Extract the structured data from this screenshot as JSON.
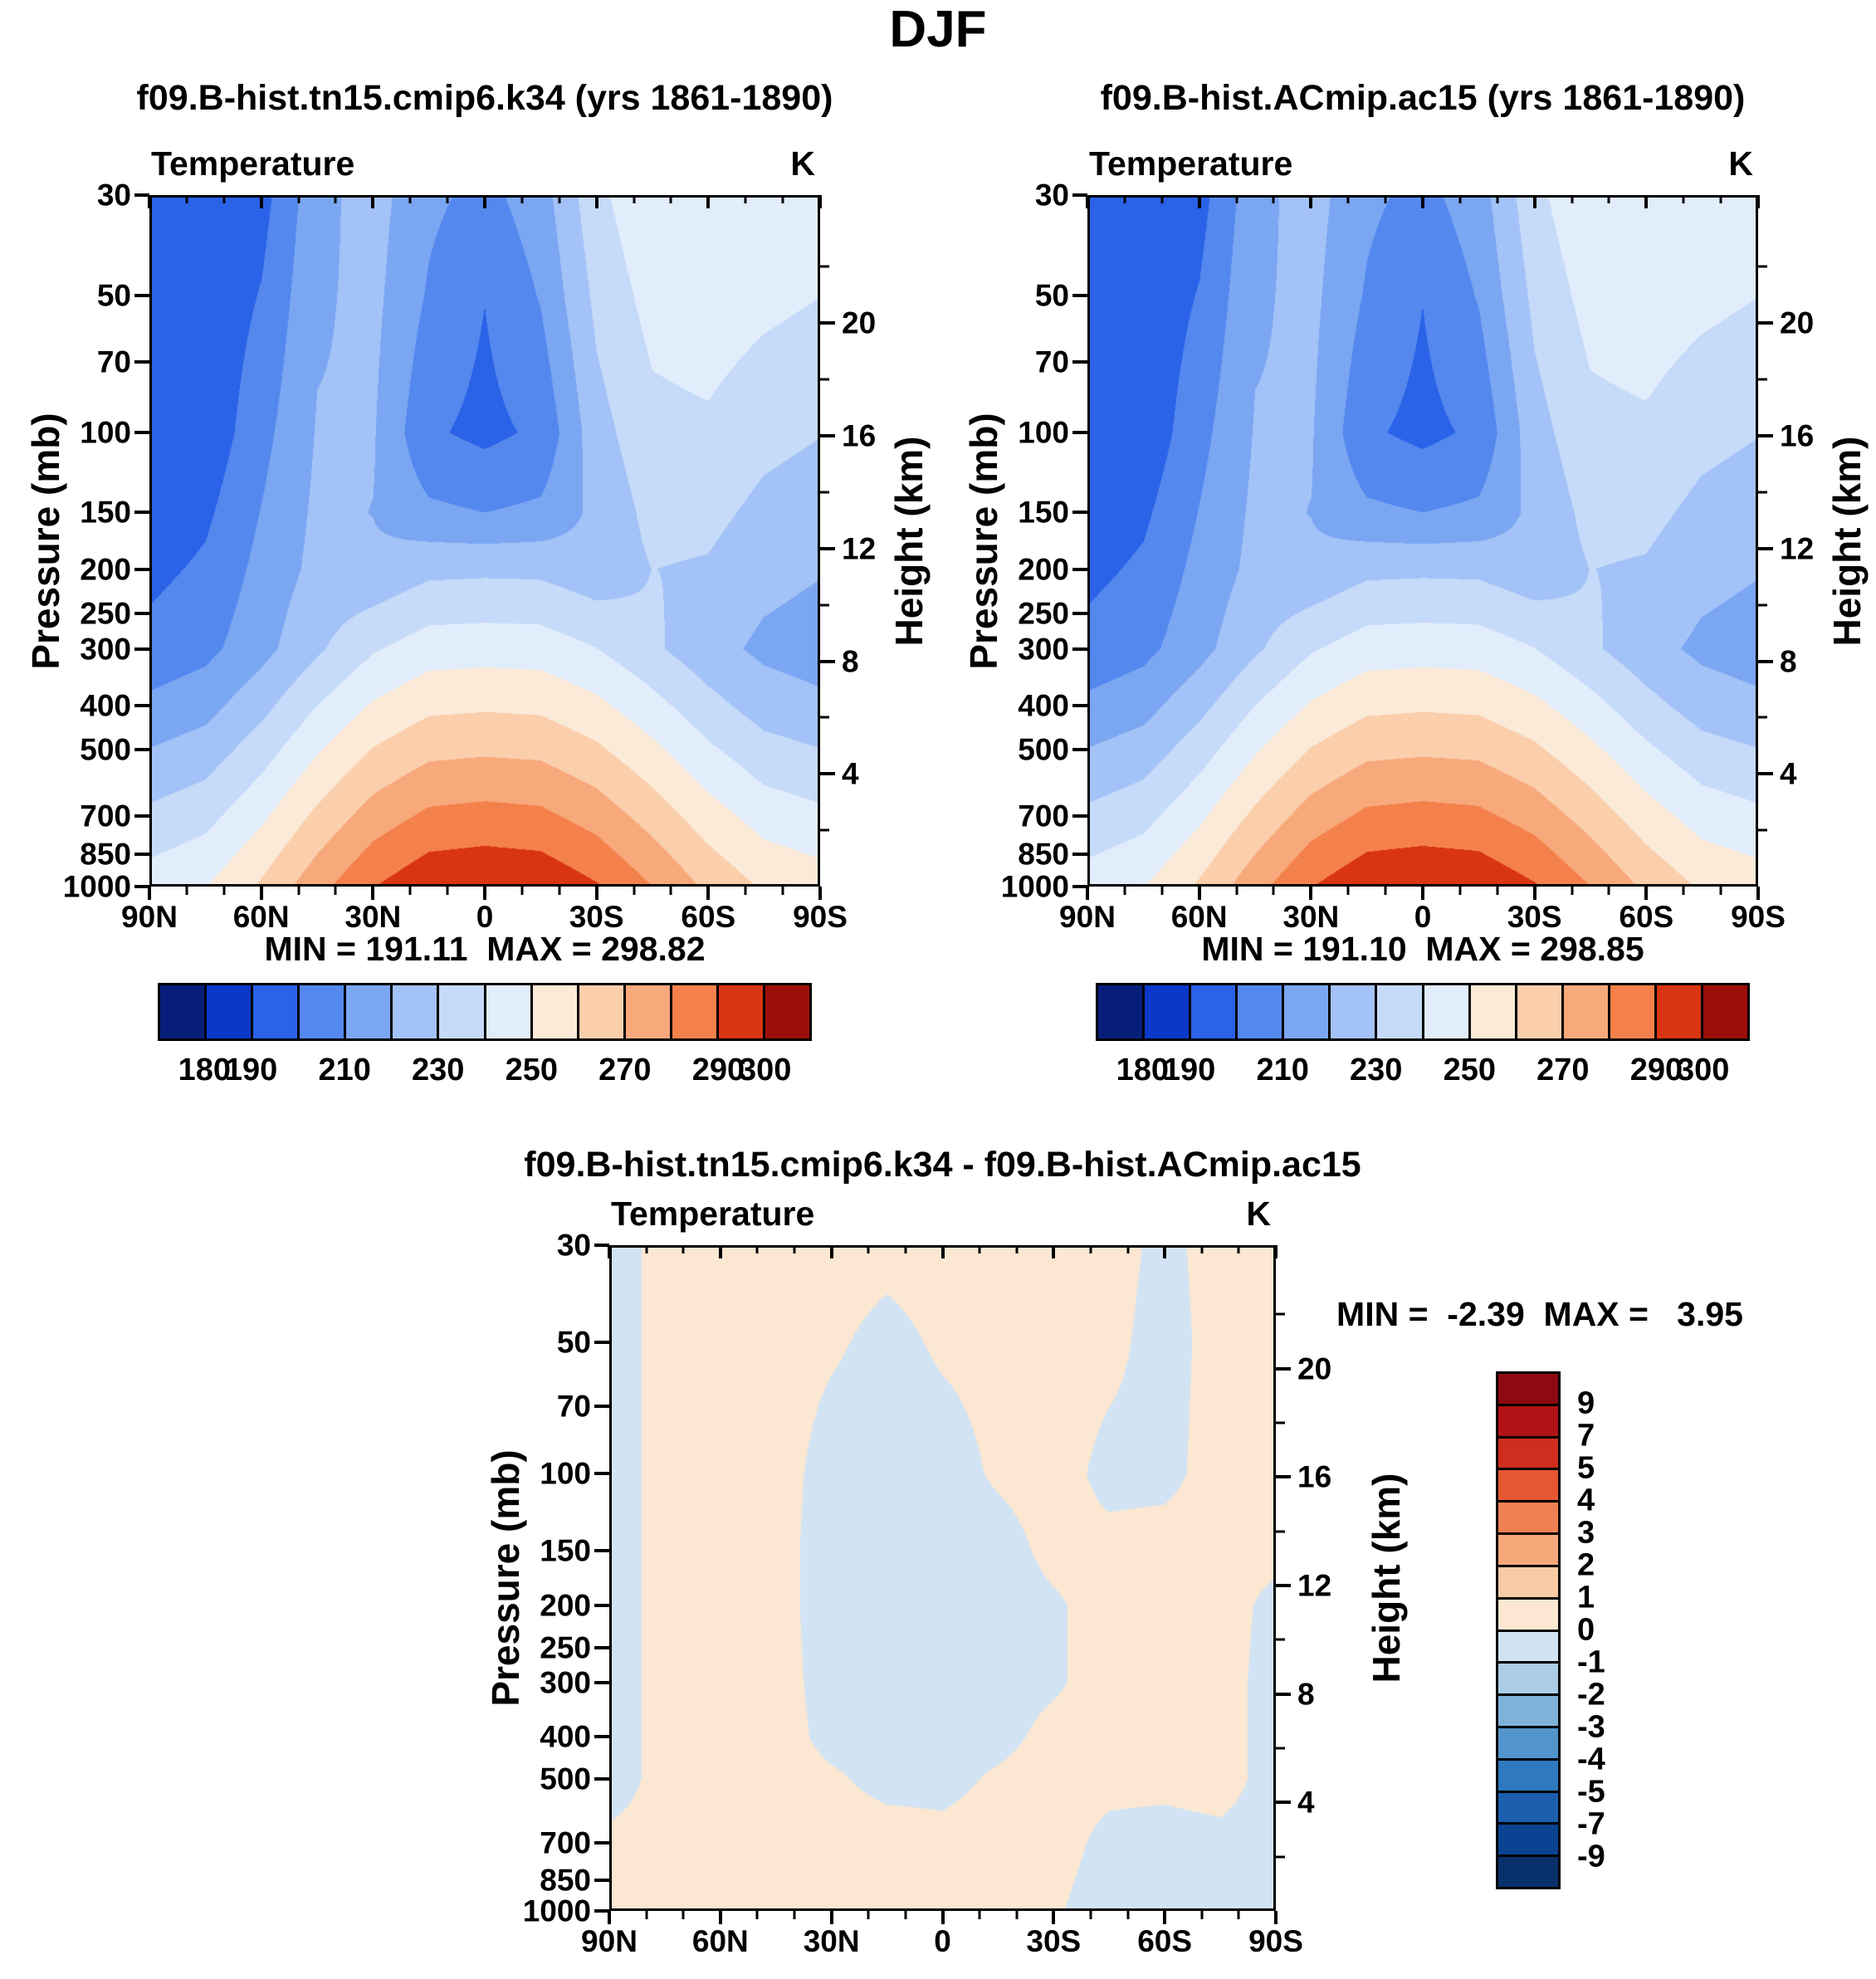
{
  "title": "DJF",
  "labels": {
    "variable": "Temperature",
    "units": "K",
    "pressure_axis": "Pressure (mb)",
    "height_axis": "Height (km)"
  },
  "chart_data": {
    "type": "heatmap",
    "description": "Zonal-mean DJF temperature cross sections (latitude vs log-pressure), two model cases and their difference",
    "x_axis": {
      "ticks": [
        "90N",
        "60N",
        "30N",
        "0",
        "30S",
        "60S",
        "90S"
      ],
      "minor_step_deg": 10
    },
    "pressure_axis": {
      "scale": "log",
      "ticks_mb": [
        30,
        50,
        70,
        100,
        150,
        200,
        250,
        300,
        400,
        500,
        700,
        850,
        1000
      ]
    },
    "height_axis": {
      "ticks_km": [
        20,
        16,
        12,
        8,
        4
      ],
      "minor_ticks_km": [
        22,
        18,
        14,
        10,
        6,
        2
      ],
      "scale_height_km": 7
    },
    "grid": {
      "lats_deg": [
        90,
        75,
        60,
        45,
        30,
        15,
        0,
        -15,
        -30,
        -45,
        -60,
        -75,
        -90
      ],
      "pressures_mb": [
        30,
        50,
        100,
        150,
        200,
        300,
        400,
        500,
        700,
        1000
      ]
    },
    "temperature": {
      "levels_k": [
        180,
        190,
        200,
        210,
        220,
        230,
        240,
        250,
        260,
        270,
        280,
        290,
        300
      ],
      "palette": [
        "#071f7a",
        "#0c38c9",
        "#2a62e8",
        "#5488ee",
        "#7ba6f2",
        "#a3c2f7",
        "#c6daf9",
        "#e2edfb",
        "#fcead9",
        "#fbceac",
        "#f8a97c",
        "#f4814b",
        "#d93512",
        "#9c0f08"
      ],
      "colorbar_labels": [
        180,
        190,
        210,
        230,
        250,
        270,
        290,
        300
      ],
      "values": [
        [
          192.0,
          192.0,
          192.0,
          193.1,
          197.3,
          203.3,
          212.3,
          220.3,
          232.3,
          245.0
        ],
        [
          192.0,
          192.0,
          192.7,
          198.1,
          201.8,
          207.2,
          216.4,
          224.5,
          236.7,
          249.6
        ],
        [
          196.1,
          200.7,
          206.8,
          210.4,
          213.0,
          216.6,
          226.9,
          235.3,
          248.0,
          261.5
        ],
        [
          216.9,
          218.5,
          220.7,
          222.0,
          222.9,
          228.4,
          240.0,
          248.9,
          262.3,
          276.5
        ],
        [
          224.1,
          222.7,
          220.9,
          219.8,
          222.0,
          239.0,
          251.1,
          260.5,
          274.6,
          289.6
        ],
        [
          212.3,
          208.8,
          201.5,
          212.0,
          227.5,
          245.2,
          257.7,
          267.4,
          282.0,
          297.6
        ],
        [
          207.0,
          200.2,
          197.4,
          210.0,
          228.0,
          245.9,
          258.6,
          268.4,
          283.3,
          299.0
        ],
        [
          215.4,
          210.7,
          201.8,
          212.0,
          227.7,
          245.4,
          257.9,
          267.6,
          282.2,
          297.8
        ],
        [
          237.2,
          232.5,
          226.2,
          222.5,
          223.3,
          240.3,
          252.4,
          261.8,
          275.9,
          290.9
        ],
        [
          248.7,
          243.7,
          236.9,
          233.0,
          230.1,
          231.9,
          243.5,
          252.4,
          265.8,
          280.0
        ],
        [
          248.9,
          246.0,
          238.2,
          232.8,
          229.0,
          223.6,
          233.4,
          241.8,
          254.5,
          268.0
        ],
        [
          249.9,
          242.7,
          233.0,
          227.4,
          223.3,
          217.8,
          225.4,
          233.5,
          245.7,
          258.6
        ],
        [
          247.3,
          240.1,
          230.4,
          224.8,
          220.7,
          215.3,
          222.3,
          230.3,
          242.3,
          255.0
        ]
      ]
    },
    "difference": {
      "levels_k": [
        -9,
        -7,
        -5,
        -4,
        -3,
        -2,
        -1,
        0,
        1,
        2,
        3,
        4,
        5,
        7,
        9
      ],
      "palette": [
        "#08306b",
        "#0a4392",
        "#1b5fae",
        "#2f79bf",
        "#5295cc",
        "#7fb2d9",
        "#abcde6",
        "#d2e4f3",
        "#fbe7d2",
        "#f9cba6",
        "#f6a87a",
        "#f08052",
        "#e55730",
        "#cf2d1d",
        "#b01217",
        "#8c0a10"
      ],
      "colorbar_labels": [
        9,
        7,
        5,
        4,
        3,
        2,
        1,
        0,
        -1,
        -2,
        -3,
        -4,
        -5,
        -7,
        -9
      ],
      "values": [
        [
          -0.4,
          -0.4,
          -0.4,
          -0.4,
          -0.4,
          -0.4,
          -0.4,
          -0.4,
          0.2,
          0.2
        ],
        [
          0.3,
          0.3,
          0.3,
          0.3,
          0.3,
          0.3,
          0.3,
          0.3,
          0.3,
          0.3
        ],
        [
          0.3,
          0.3,
          0.3,
          0.3,
          0.3,
          0.3,
          0.3,
          0.3,
          0.3,
          0.3
        ],
        [
          0.3,
          0.3,
          0.3,
          0.3,
          0.3,
          0.3,
          0.3,
          0.3,
          0.3,
          0.3
        ],
        [
          0.3,
          0.1,
          -0.3,
          -0.4,
          -0.4,
          -0.3,
          -0.2,
          0.1,
          0.3,
          0.3
        ],
        [
          0.2,
          -0.2,
          -0.4,
          -0.5,
          -0.5,
          -0.4,
          -0.3,
          -0.2,
          0.3,
          0.3
        ],
        [
          0.3,
          0.1,
          -0.3,
          -0.5,
          -0.5,
          -0.4,
          -0.3,
          -0.2,
          0.2,
          0.3
        ],
        [
          0.3,
          0.2,
          0.1,
          -0.3,
          -0.4,
          -0.3,
          -0.2,
          0.1,
          0.3,
          0.2
        ],
        [
          0.3,
          0.3,
          0.3,
          0.2,
          -0.1,
          -0.1,
          0.2,
          0.3,
          0.3,
          0.1
        ],
        [
          0.3,
          0.2,
          -0.2,
          0.2,
          0.3,
          0.3,
          0.3,
          0.2,
          -0.2,
          -0.4
        ],
        [
          -0.2,
          -0.3,
          -0.2,
          0.3,
          0.3,
          0.3,
          0.3,
          0.2,
          -0.3,
          -0.4
        ],
        [
          0.3,
          0.3,
          0.3,
          0.3,
          0.3,
          0.3,
          0.3,
          0.3,
          -0.2,
          -0.2
        ],
        [
          0.3,
          0.3,
          0.3,
          0.2,
          -0.2,
          -0.3,
          -0.3,
          -0.3,
          -0.3,
          -0.4
        ]
      ]
    },
    "panels": [
      {
        "title": "f09.B-hist.tn15.cmip6.k34 (yrs 1861-1890)",
        "field": "temperature",
        "min": 191.11,
        "max": 298.82,
        "minmax": "MIN = 191.11  MAX = 298.82"
      },
      {
        "title": "f09.B-hist.ACmip.ac15 (yrs 1861-1890)",
        "field": "temperature",
        "min": 191.1,
        "max": 298.85,
        "minmax": "MIN = 191.10  MAX = 298.85"
      },
      {
        "title": "f09.B-hist.tn15.cmip6.k34 - f09.B-hist.ACmip.ac15",
        "field": "difference",
        "min": -2.39,
        "max": 3.95,
        "minmax": "MIN =  -2.39  MAX =   3.95"
      }
    ]
  }
}
